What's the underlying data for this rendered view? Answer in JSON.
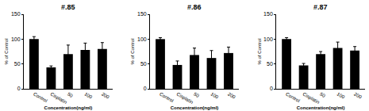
{
  "chart_data": [
    {
      "type": "bar",
      "title": "#.85",
      "x_label": "Concentration(ng/ml)",
      "y_label": "% of Control",
      "categories": [
        "Control",
        "Cisplatin",
        "50",
        "100",
        "200"
      ],
      "values": [
        100,
        43,
        70,
        78,
        80
      ],
      "errors": [
        5,
        3,
        18,
        14,
        13
      ],
      "color": "#000000",
      "ylim": [
        0,
        150
      ],
      "yticks": [
        0,
        50,
        100,
        150
      ],
      "grid": false
    },
    {
      "type": "bar",
      "title": "#.86",
      "x_label": "Concentration(ng/ml)",
      "y_label": "% of Control",
      "categories": [
        "Control",
        "Cisplatin",
        "50",
        "100",
        "200"
      ],
      "values": [
        100,
        48,
        68,
        62,
        72
      ],
      "errors": [
        3,
        8,
        14,
        15,
        12
      ],
      "color": "#000000",
      "ylim": [
        0,
        150
      ],
      "yticks": [
        0,
        50,
        100,
        150
      ],
      "grid": false
    },
    {
      "type": "bar",
      "title": "#.87",
      "x_label": "Concentration(ng/ml)",
      "y_label": "% of Control",
      "categories": [
        "Control",
        "Cisplatin",
        "50",
        "100",
        "200"
      ],
      "values": [
        100,
        47,
        70,
        82,
        77
      ],
      "errors": [
        3,
        4,
        5,
        12,
        8
      ],
      "color": "#000000",
      "ylim": [
        0,
        150
      ],
      "yticks": [
        0,
        50,
        100,
        150
      ],
      "grid": false
    }
  ]
}
